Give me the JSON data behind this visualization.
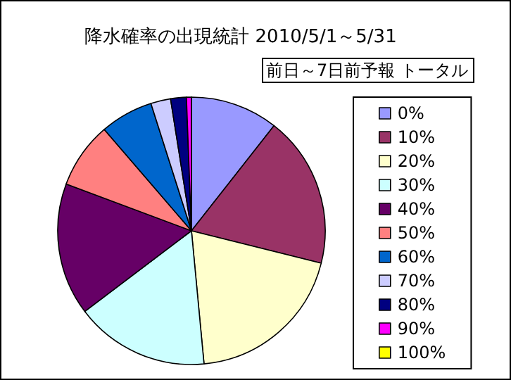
{
  "chart_data": {
    "type": "pie",
    "title": "降水確率の出現統計 2010/5/1～5/31",
    "legend_title": "前日～7日前予報 トータル",
    "categories": [
      "0%",
      "10%",
      "20%",
      "30%",
      "40%",
      "50%",
      "60%",
      "70%",
      "80%",
      "90%",
      "100%"
    ],
    "values": [
      10.6,
      18.3,
      19.6,
      16.2,
      16.0,
      8.0,
      6.4,
      2.4,
      1.9,
      0.6,
      0
    ],
    "colors": [
      "#9999ff",
      "#993366",
      "#ffffcc",
      "#ccffff",
      "#660066",
      "#ff8080",
      "#0066cc",
      "#ccccff",
      "#000080",
      "#ff00ff",
      "#ffff00"
    ],
    "legend": "right"
  }
}
